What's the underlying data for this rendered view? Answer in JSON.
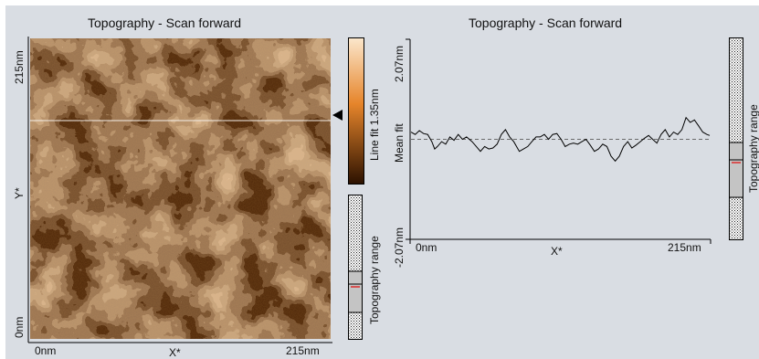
{
  "left_panel": {
    "title": "Topography - Scan forward",
    "y_top_label": "215nm",
    "y_axis_label": "Y*",
    "y_bottom_label": "0nm",
    "x_left_label": "0nm",
    "x_axis_label": "X*",
    "x_right_label": "215nm",
    "colorbar_label": "Line fit 1.35nm",
    "range_label": "Topography range",
    "colors": {
      "bright": "#fbe7cc",
      "mid": "#e6852b",
      "dark": "#2b1100",
      "scanline": "#f5f0ea",
      "range_mark": "#d22"
    }
  },
  "right_panel": {
    "title": "Topography - Scan forward",
    "y_axis_label": "Mean fit",
    "x_axis_label": "X*",
    "range_label": "Topography range",
    "colors": {
      "line": "#000000",
      "reference": "#6b6b6b",
      "range_mark": "#d22"
    }
  },
  "chart_data": {
    "type": "line",
    "y_top_label": "2.07nm",
    "y_bottom_label": "-2.07nm",
    "x_left_label": "0nm",
    "x_right_label": "215nm",
    "xlim": [
      0,
      215
    ],
    "ylim": [
      -2.07,
      2.07
    ],
    "grid": false,
    "reference_line": 0,
    "series": [
      {
        "x": [
          0,
          3,
          6,
          9,
          12,
          15,
          17,
          19,
          22,
          25,
          28,
          31,
          34,
          37,
          40,
          44,
          47,
          50,
          53,
          56,
          59,
          62,
          65,
          68,
          71,
          74,
          78,
          81,
          84,
          87,
          90,
          93,
          96,
          99,
          102,
          105,
          108,
          111,
          114,
          117,
          120,
          123,
          126,
          129,
          132,
          135,
          138,
          141,
          144,
          147,
          150,
          153,
          156,
          159,
          162,
          165,
          168,
          171,
          174,
          177,
          180,
          183,
          186,
          189,
          192,
          195,
          198,
          201,
          204,
          207,
          210,
          213,
          215
        ],
        "y": [
          0.15,
          0.1,
          0.18,
          0.12,
          0.1,
          -0.05,
          -0.2,
          -0.15,
          -0.05,
          -0.1,
          0.05,
          -0.02,
          0.1,
          0.0,
          0.05,
          -0.05,
          -0.15,
          -0.25,
          -0.15,
          -0.2,
          -0.18,
          -0.1,
          0.1,
          0.2,
          0.05,
          -0.05,
          -0.25,
          -0.2,
          -0.15,
          -0.05,
          0.05,
          0.05,
          0.1,
          0.0,
          0.1,
          0.12,
          0.0,
          -0.15,
          -0.1,
          -0.08,
          -0.1,
          -0.05,
          0.0,
          -0.12,
          -0.25,
          -0.2,
          -0.1,
          -0.15,
          -0.35,
          -0.45,
          -0.35,
          -0.15,
          -0.05,
          -0.18,
          -0.12,
          -0.05,
          0.02,
          0.08,
          0.0,
          -0.08,
          0.1,
          0.2,
          0.05,
          0.15,
          0.1,
          0.2,
          0.45,
          0.35,
          0.4,
          0.28,
          0.15,
          0.1,
          0.08
        ]
      }
    ]
  }
}
